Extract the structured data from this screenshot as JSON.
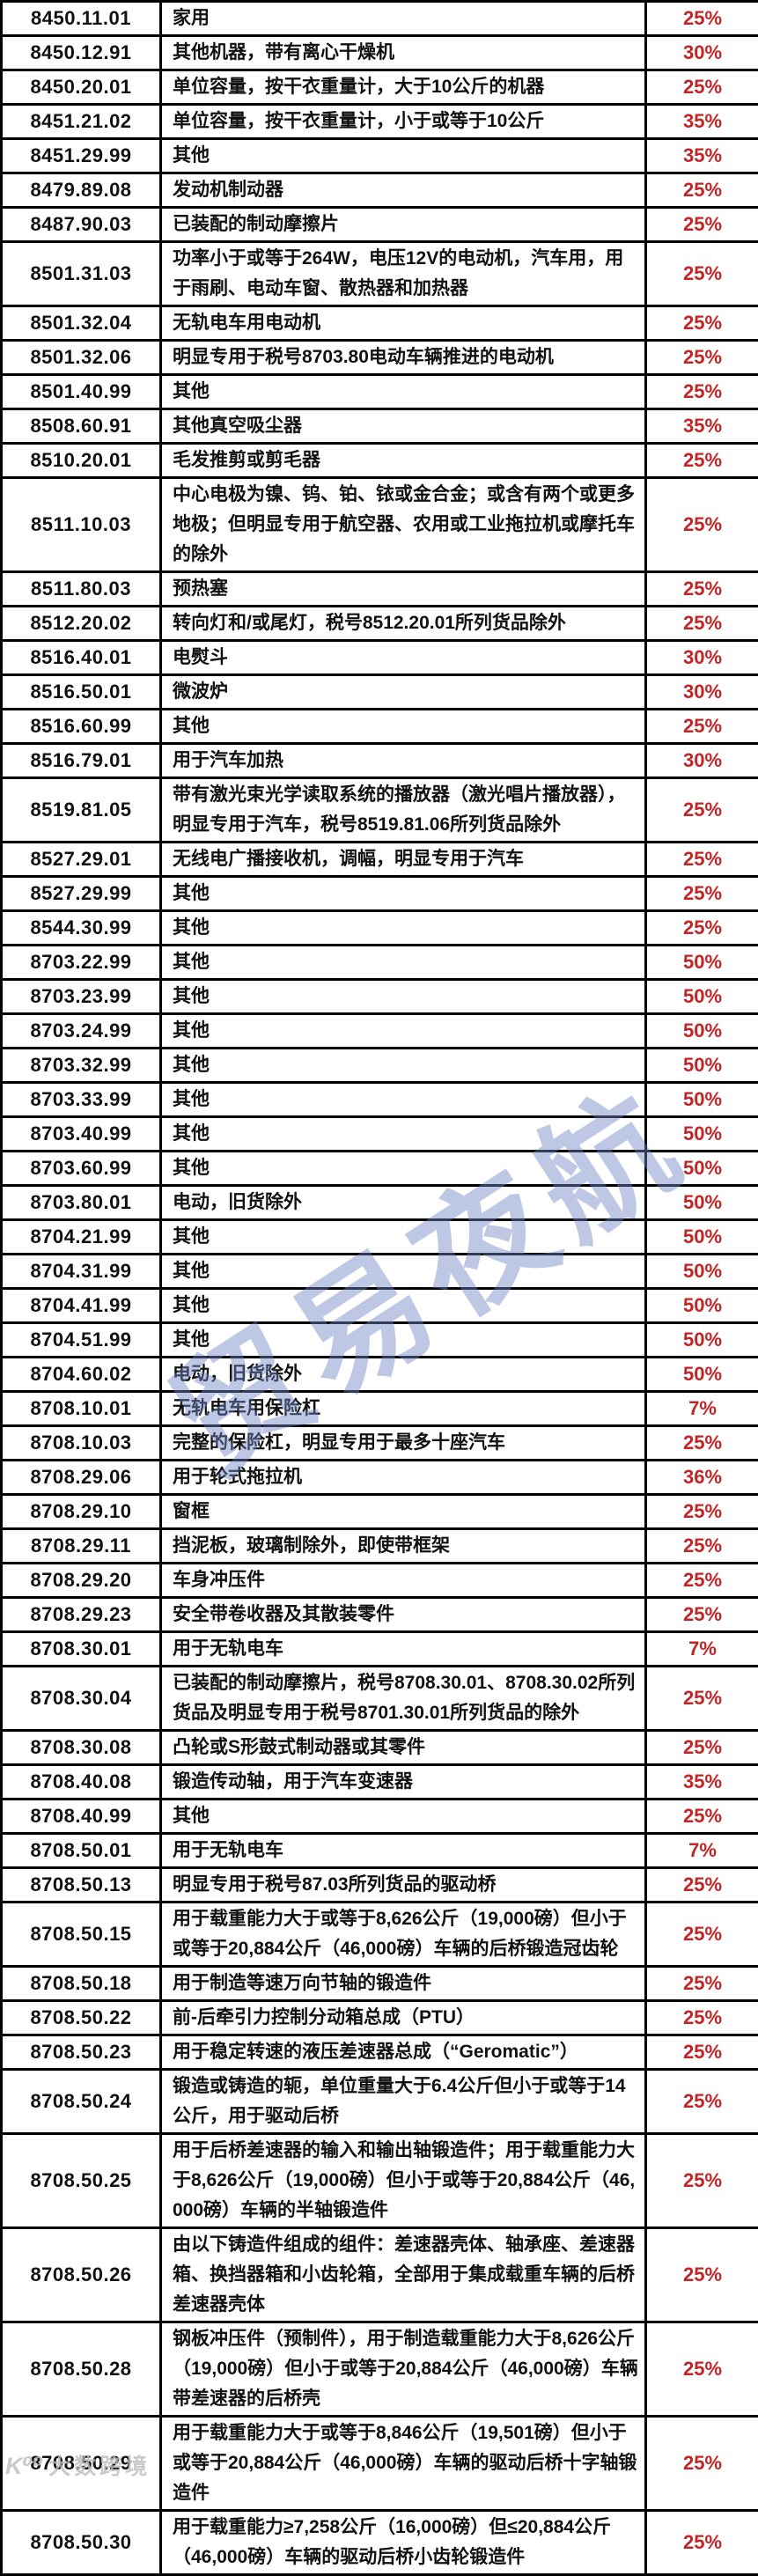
{
  "colors": {
    "rate_text": "#c22525",
    "table_border": "#000000",
    "watermark_blue": "rgba(110,132,198,0.45)",
    "watermark_gray": "#bdbdbd"
  },
  "watermark": {
    "text": "贸易夜航"
  },
  "corner_watermark": {
    "logo": "K⁰⁰",
    "text": "大数跨境"
  },
  "table": {
    "rows": [
      {
        "code": "8450.11.01",
        "desc": "家用",
        "rate": "25%"
      },
      {
        "code": "8450.12.91",
        "desc": "其他机器，带有离心干燥机",
        "rate": "30%"
      },
      {
        "code": "8450.20.01",
        "desc": "单位容量，按干衣重量计，大于10公斤的机器",
        "rate": "25%"
      },
      {
        "code": "8451.21.02",
        "desc": "单位容量，按干衣重量计，小于或等于10公斤",
        "rate": "35%"
      },
      {
        "code": "8451.29.99",
        "desc": "其他",
        "rate": "35%"
      },
      {
        "code": "8479.89.08",
        "desc": "发动机制动器",
        "rate": "25%"
      },
      {
        "code": "8487.90.03",
        "desc": "已装配的制动摩擦片",
        "rate": "25%"
      },
      {
        "code": "8501.31.03",
        "desc": "功率小于或等于264W，电压12V的电动机，汽车用，用于雨刷、电动车窗、散热器和加热器",
        "rate": "25%"
      },
      {
        "code": "8501.32.04",
        "desc": "无轨电车用电动机",
        "rate": "25%"
      },
      {
        "code": "8501.32.06",
        "desc": "明显专用于税号8703.80电动车辆推进的电动机",
        "rate": "25%"
      },
      {
        "code": "8501.40.99",
        "desc": "其他",
        "rate": "25%"
      },
      {
        "code": "8508.60.91",
        "desc": "其他真空吸尘器",
        "rate": "35%"
      },
      {
        "code": "8510.20.01",
        "desc": "毛发推剪或剪毛器",
        "rate": "25%"
      },
      {
        "code": "8511.10.03",
        "desc": "中心电极为镍、钨、铂、铱或金合金；或含有两个或更多地极；但明显专用于航空器、农用或工业拖拉机或摩托车的除外",
        "rate": "25%"
      },
      {
        "code": "8511.80.03",
        "desc": "预热塞",
        "rate": "25%"
      },
      {
        "code": "8512.20.02",
        "desc": "转向灯和/或尾灯，税号8512.20.01所列货品除外",
        "rate": "25%"
      },
      {
        "code": "8516.40.01",
        "desc": "电熨斗",
        "rate": "30%"
      },
      {
        "code": "8516.50.01",
        "desc": "微波炉",
        "rate": "30%"
      },
      {
        "code": "8516.60.99",
        "desc": "其他",
        "rate": "25%"
      },
      {
        "code": "8516.79.01",
        "desc": "用于汽车加热",
        "rate": "30%"
      },
      {
        "code": "8519.81.05",
        "desc": "带有激光束光学读取系统的播放器（激光唱片播放器），明显专用于汽车，税号8519.81.06所列货品除外",
        "rate": "25%"
      },
      {
        "code": "8527.29.01",
        "desc": "无线电广播接收机，调幅，明显专用于汽车",
        "rate": "25%"
      },
      {
        "code": "8527.29.99",
        "desc": "其他",
        "rate": "25%"
      },
      {
        "code": "8544.30.99",
        "desc": "其他",
        "rate": "25%"
      },
      {
        "code": "8703.22.99",
        "desc": "其他",
        "rate": "50%"
      },
      {
        "code": "8703.23.99",
        "desc": "其他",
        "rate": "50%"
      },
      {
        "code": "8703.24.99",
        "desc": "其他",
        "rate": "50%"
      },
      {
        "code": "8703.32.99",
        "desc": "其他",
        "rate": "50%"
      },
      {
        "code": "8703.33.99",
        "desc": "其他",
        "rate": "50%"
      },
      {
        "code": "8703.40.99",
        "desc": "其他",
        "rate": "50%"
      },
      {
        "code": "8703.60.99",
        "desc": "其他",
        "rate": "50%"
      },
      {
        "code": "8703.80.01",
        "desc": "电动，旧货除外",
        "rate": "50%"
      },
      {
        "code": "8704.21.99",
        "desc": "其他",
        "rate": "50%"
      },
      {
        "code": "8704.31.99",
        "desc": "其他",
        "rate": "50%"
      },
      {
        "code": "8704.41.99",
        "desc": "其他",
        "rate": "50%"
      },
      {
        "code": "8704.51.99",
        "desc": "其他",
        "rate": "50%"
      },
      {
        "code": "8704.60.02",
        "desc": "电动，旧货除外",
        "rate": "50%"
      },
      {
        "code": "8708.10.01",
        "desc": "无轨电车用保险杠",
        "rate": "7%"
      },
      {
        "code": "8708.10.03",
        "desc": "完整的保险杠，明显专用于最多十座汽车",
        "rate": "25%"
      },
      {
        "code": "8708.29.06",
        "desc": "用于轮式拖拉机",
        "rate": "36%"
      },
      {
        "code": "8708.29.10",
        "desc": "窗框",
        "rate": "25%"
      },
      {
        "code": "8708.29.11",
        "desc": "挡泥板，玻璃制除外，即使带框架",
        "rate": "25%"
      },
      {
        "code": "8708.29.20",
        "desc": "车身冲压件",
        "rate": "25%"
      },
      {
        "code": "8708.29.23",
        "desc": "安全带卷收器及其散装零件",
        "rate": "25%"
      },
      {
        "code": "8708.30.01",
        "desc": "用于无轨电车",
        "rate": "7%"
      },
      {
        "code": "8708.30.04",
        "desc": "已装配的制动摩擦片，税号8708.30.01、8708.30.02所列货品及明显专用于税号8701.30.01所列货品的除外",
        "rate": "25%"
      },
      {
        "code": "8708.30.08",
        "desc": "凸轮或S形鼓式制动器或其零件",
        "rate": "25%"
      },
      {
        "code": "8708.40.08",
        "desc": "锻造传动轴，用于汽车变速器",
        "rate": "35%"
      },
      {
        "code": "8708.40.99",
        "desc": "其他",
        "rate": "25%"
      },
      {
        "code": "8708.50.01",
        "desc": "用于无轨电车",
        "rate": "7%"
      },
      {
        "code": "8708.50.13",
        "desc": "明显专用于税号87.03所列货品的驱动桥",
        "rate": "25%"
      },
      {
        "code": "8708.50.15",
        "desc": "用于载重能力大于或等于8,626公斤（19,000磅）但小于或等于20,884公斤（46,000磅）车辆的后桥锻造冠齿轮",
        "rate": "25%"
      },
      {
        "code": "8708.50.18",
        "desc": "用于制造等速万向节轴的锻造件",
        "rate": "25%"
      },
      {
        "code": "8708.50.22",
        "desc": "前-后牵引力控制分动箱总成（PTU）",
        "rate": "25%"
      },
      {
        "code": "8708.50.23",
        "desc": "用于稳定转速的液压差速器总成（“Geromatic”）",
        "rate": "25%"
      },
      {
        "code": "8708.50.24",
        "desc": "锻造或铸造的轭，单位重量大于6.4公斤但小于或等于14公斤，用于驱动后桥",
        "rate": "25%"
      },
      {
        "code": "8708.50.25",
        "desc": "用于后桥差速器的输入和输出轴锻造件；用于载重能力大于8,626公斤（19,000磅）但小于或等于20,884公斤（46,000磅）车辆的半轴锻造件",
        "rate": "25%"
      },
      {
        "code": "8708.50.26",
        "desc": "由以下铸造件组成的组件：差速器壳体、轴承座、差速器箱、换挡器箱和小齿轮箱，全部用于集成载重车辆的后桥差速器壳体",
        "rate": "25%"
      },
      {
        "code": "8708.50.28",
        "desc": "钢板冲压件（预制件），用于制造载重能力大于8,626公斤（19,000磅）但小于或等于20,884公斤（46,000磅）车辆带差速器的后桥壳",
        "rate": "25%"
      },
      {
        "code": "8708.50.29",
        "desc": "用于载重能力大于或等于8,846公斤（19,501磅）但小于或等于20,884公斤（46,000磅）车辆的驱动后桥十字轴锻造件",
        "rate": "25%"
      },
      {
        "code": "8708.50.30",
        "desc": "用于载重能力≥7,258公斤（16,000磅）但≤20,884公斤（46,000磅）车辆的驱动后桥小齿轮锻造件",
        "rate": "25%"
      }
    ]
  }
}
